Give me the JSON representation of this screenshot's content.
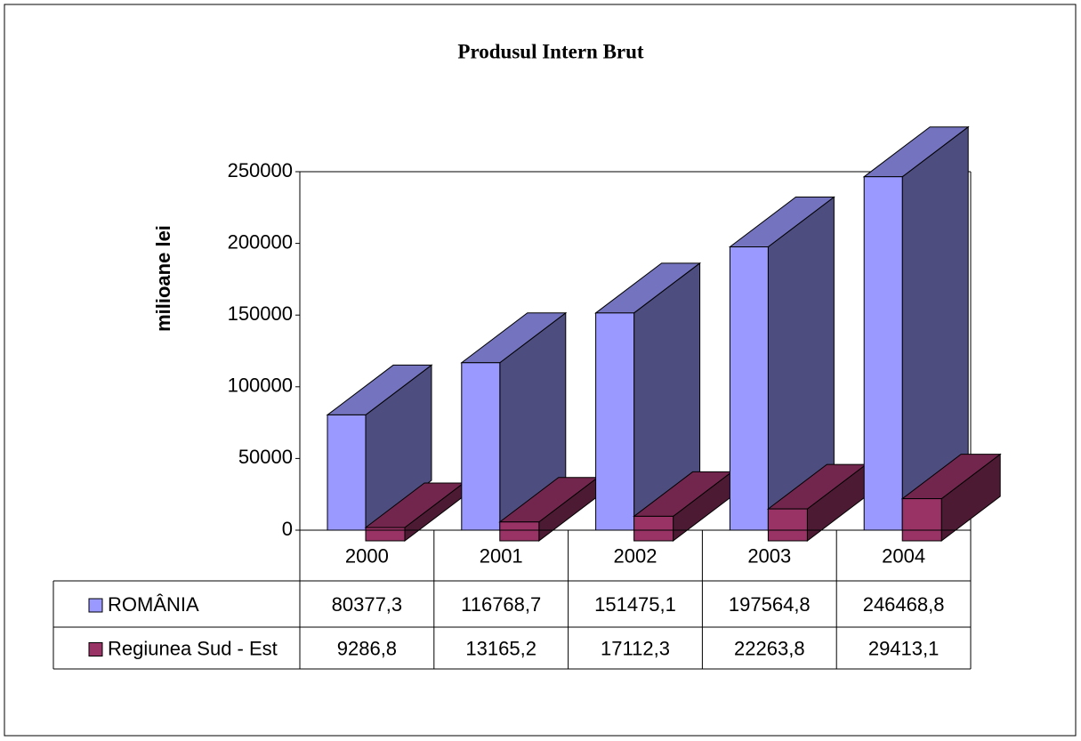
{
  "chart_data": {
    "type": "bar3d",
    "title": "Produsul Intern Brut",
    "y_label": "milioane lei",
    "categories": [
      "2000",
      "2001",
      "2002",
      "2003",
      "2004"
    ],
    "series": [
      {
        "name": "ROMÂNIA",
        "color": "#9999ff",
        "values": [
          80377.3,
          116768.7,
          151475.1,
          197564.8,
          246468.8
        ],
        "value_labels": [
          "80377,3",
          "116768,7",
          "151475,1",
          "197564,8",
          "246468,8"
        ]
      },
      {
        "name": "Regiunea Sud - Est",
        "color": "#993366",
        "values": [
          9286.8,
          13165.2,
          17112.3,
          22263.8,
          29413.1
        ],
        "value_labels": [
          "9286,8",
          "13165,2",
          "17112,3",
          "22263,8",
          "29413,1"
        ]
      }
    ],
    "ylim": [
      0,
      250000
    ],
    "yticks": [
      0,
      50000,
      100000,
      150000,
      200000,
      250000
    ],
    "grid": false,
    "data_table": true
  }
}
